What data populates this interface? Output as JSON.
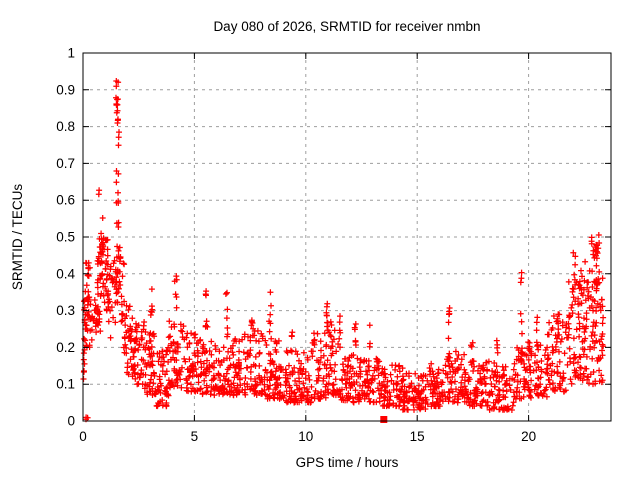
{
  "window": {
    "title": "Day 080 of 2026, SRMTID for receiver nmbn"
  },
  "chart_data": {
    "type": "scatter",
    "title": "Day 080 of 2026, SRMTID for receiver nmbn",
    "xlabel": "GPS time / hours",
    "ylabel": "SRMTID / TECUs",
    "xlim": [
      0,
      23.7
    ],
    "ylim": [
      0,
      1
    ],
    "xticks": [
      0,
      5,
      10,
      15,
      20
    ],
    "yticks": [
      {
        "v": 0,
        "label": "0"
      },
      {
        "v": 0.1,
        "label": "0.1"
      },
      {
        "v": 0.2,
        "label": "0.2"
      },
      {
        "v": 0.3,
        "label": "0.3"
      },
      {
        "v": 0.4,
        "label": "0.4"
      },
      {
        "v": 0.5,
        "label": "0.5"
      },
      {
        "v": 0.6,
        "label": "0.6"
      },
      {
        "v": 0.7,
        "label": "0.7"
      },
      {
        "v": 0.8,
        "label": "0.8"
      },
      {
        "v": 0.9,
        "label": "0.9"
      },
      {
        "v": 1,
        "label": "1"
      }
    ],
    "grid": {
      "on": true,
      "dashed": true,
      "color": "#9e9e9e"
    },
    "legend": {
      "visible": false
    },
    "marker": {
      "shape": "plus",
      "color": "#ff0000",
      "size": 7
    },
    "axis_color": "#000000",
    "outlier_square": {
      "x": 13.5,
      "y": 0.004
    },
    "note": "Dense noisy scatter of ~2000 red plus markers. Encoded as density envelope. band_segments format: [x0,x1,yLow,yHigh,count,lowBias]. spike_columns format: [xCenter,width,y0,y1,count] (narrow vertical bursts).",
    "seed": 7,
    "band_segments": [
      [
        0.02,
        0.12,
        0.1,
        0.33,
        14,
        1.0
      ],
      [
        0.05,
        0.35,
        0.2,
        0.34,
        30,
        1.0
      ],
      [
        0.1,
        0.32,
        0.35,
        0.43,
        12,
        1.0
      ],
      [
        0.12,
        0.22,
        0.0,
        0.012,
        3,
        1.0
      ],
      [
        0.35,
        0.62,
        0.22,
        0.33,
        10,
        1.0
      ],
      [
        0.55,
        0.78,
        0.24,
        0.31,
        16,
        1.0
      ],
      [
        0.62,
        1.15,
        0.3,
        0.5,
        55,
        1.2
      ],
      [
        0.7,
        0.92,
        0.45,
        0.63,
        12,
        1.3
      ],
      [
        1.1,
        1.48,
        0.22,
        0.48,
        22,
        1.3
      ],
      [
        1.72,
        1.95,
        0.18,
        0.45,
        22,
        1.5
      ],
      [
        1.95,
        2.25,
        0.12,
        0.32,
        26,
        1.5
      ],
      [
        2.25,
        2.75,
        0.1,
        0.28,
        40,
        1.6
      ],
      [
        2.75,
        3.3,
        0.07,
        0.25,
        46,
        1.6
      ],
      [
        3.3,
        3.85,
        0.04,
        0.2,
        48,
        1.5
      ],
      [
        3.85,
        4.55,
        0.09,
        0.28,
        52,
        1.6
      ],
      [
        4.55,
        5.35,
        0.08,
        0.24,
        60,
        1.6
      ],
      [
        5.35,
        6.35,
        0.07,
        0.22,
        72,
        1.6
      ],
      [
        6.35,
        7.25,
        0.07,
        0.24,
        68,
        1.6
      ],
      [
        7.25,
        8.15,
        0.07,
        0.25,
        68,
        1.6
      ],
      [
        8.15,
        9.05,
        0.06,
        0.22,
        68,
        1.6
      ],
      [
        9.05,
        10.25,
        0.05,
        0.19,
        88,
        1.5
      ],
      [
        10.25,
        10.95,
        0.06,
        0.24,
        52,
        1.5
      ],
      [
        10.95,
        11.55,
        0.07,
        0.27,
        46,
        1.4
      ],
      [
        11.55,
        12.55,
        0.05,
        0.18,
        76,
        1.5
      ],
      [
        12.55,
        13.45,
        0.05,
        0.17,
        66,
        1.5
      ],
      [
        13.45,
        14.35,
        0.04,
        0.16,
        66,
        1.5
      ],
      [
        14.35,
        15.45,
        0.03,
        0.13,
        82,
        1.4
      ],
      [
        15.45,
        16.25,
        0.04,
        0.16,
        60,
        1.5
      ],
      [
        16.25,
        17.25,
        0.05,
        0.19,
        70,
        1.5
      ],
      [
        17.25,
        18.25,
        0.04,
        0.17,
        70,
        1.5
      ],
      [
        18.25,
        19.35,
        0.03,
        0.16,
        76,
        1.5
      ],
      [
        19.35,
        19.95,
        0.06,
        0.2,
        40,
        1.4
      ],
      [
        19.95,
        20.85,
        0.06,
        0.22,
        62,
        1.5
      ],
      [
        20.85,
        21.7,
        0.08,
        0.3,
        60,
        1.4
      ],
      [
        21.7,
        22.5,
        0.1,
        0.38,
        68,
        1.3
      ],
      [
        22.5,
        23.35,
        0.1,
        0.45,
        86,
        1.2
      ],
      [
        22.8,
        23.2,
        0.44,
        0.51,
        14,
        1.0
      ]
    ],
    "spike_columns": [
      [
        1.53,
        0.1,
        0.8,
        0.93,
        14
      ],
      [
        1.56,
        0.12,
        0.5,
        0.8,
        13
      ],
      [
        1.58,
        0.22,
        0.32,
        0.5,
        26
      ],
      [
        2.35,
        0.1,
        0.18,
        0.33,
        6
      ],
      [
        3.05,
        0.12,
        0.18,
        0.38,
        9
      ],
      [
        4.15,
        0.12,
        0.24,
        0.4,
        8
      ],
      [
        5.55,
        0.1,
        0.2,
        0.37,
        8
      ],
      [
        6.45,
        0.1,
        0.2,
        0.35,
        6
      ],
      [
        7.6,
        0.1,
        0.24,
        0.34,
        6
      ],
      [
        8.4,
        0.1,
        0.22,
        0.37,
        7
      ],
      [
        9.35,
        0.1,
        0.18,
        0.28,
        5
      ],
      [
        10.95,
        0.1,
        0.22,
        0.33,
        7
      ],
      [
        11.5,
        0.1,
        0.2,
        0.3,
        5
      ],
      [
        12.2,
        0.1,
        0.17,
        0.32,
        6
      ],
      [
        12.85,
        0.08,
        0.15,
        0.27,
        4
      ],
      [
        16.45,
        0.12,
        0.15,
        0.36,
        10
      ],
      [
        17.45,
        0.1,
        0.14,
        0.24,
        5
      ],
      [
        18.6,
        0.1,
        0.13,
        0.22,
        5
      ],
      [
        19.7,
        0.12,
        0.15,
        0.42,
        14
      ],
      [
        20.4,
        0.1,
        0.18,
        0.3,
        6
      ],
      [
        21.3,
        0.1,
        0.22,
        0.37,
        7
      ],
      [
        22.05,
        0.12,
        0.3,
        0.46,
        9
      ],
      [
        22.35,
        0.1,
        0.28,
        0.43,
        7
      ],
      [
        23.1,
        0.15,
        0.35,
        0.5,
        10
      ]
    ]
  }
}
